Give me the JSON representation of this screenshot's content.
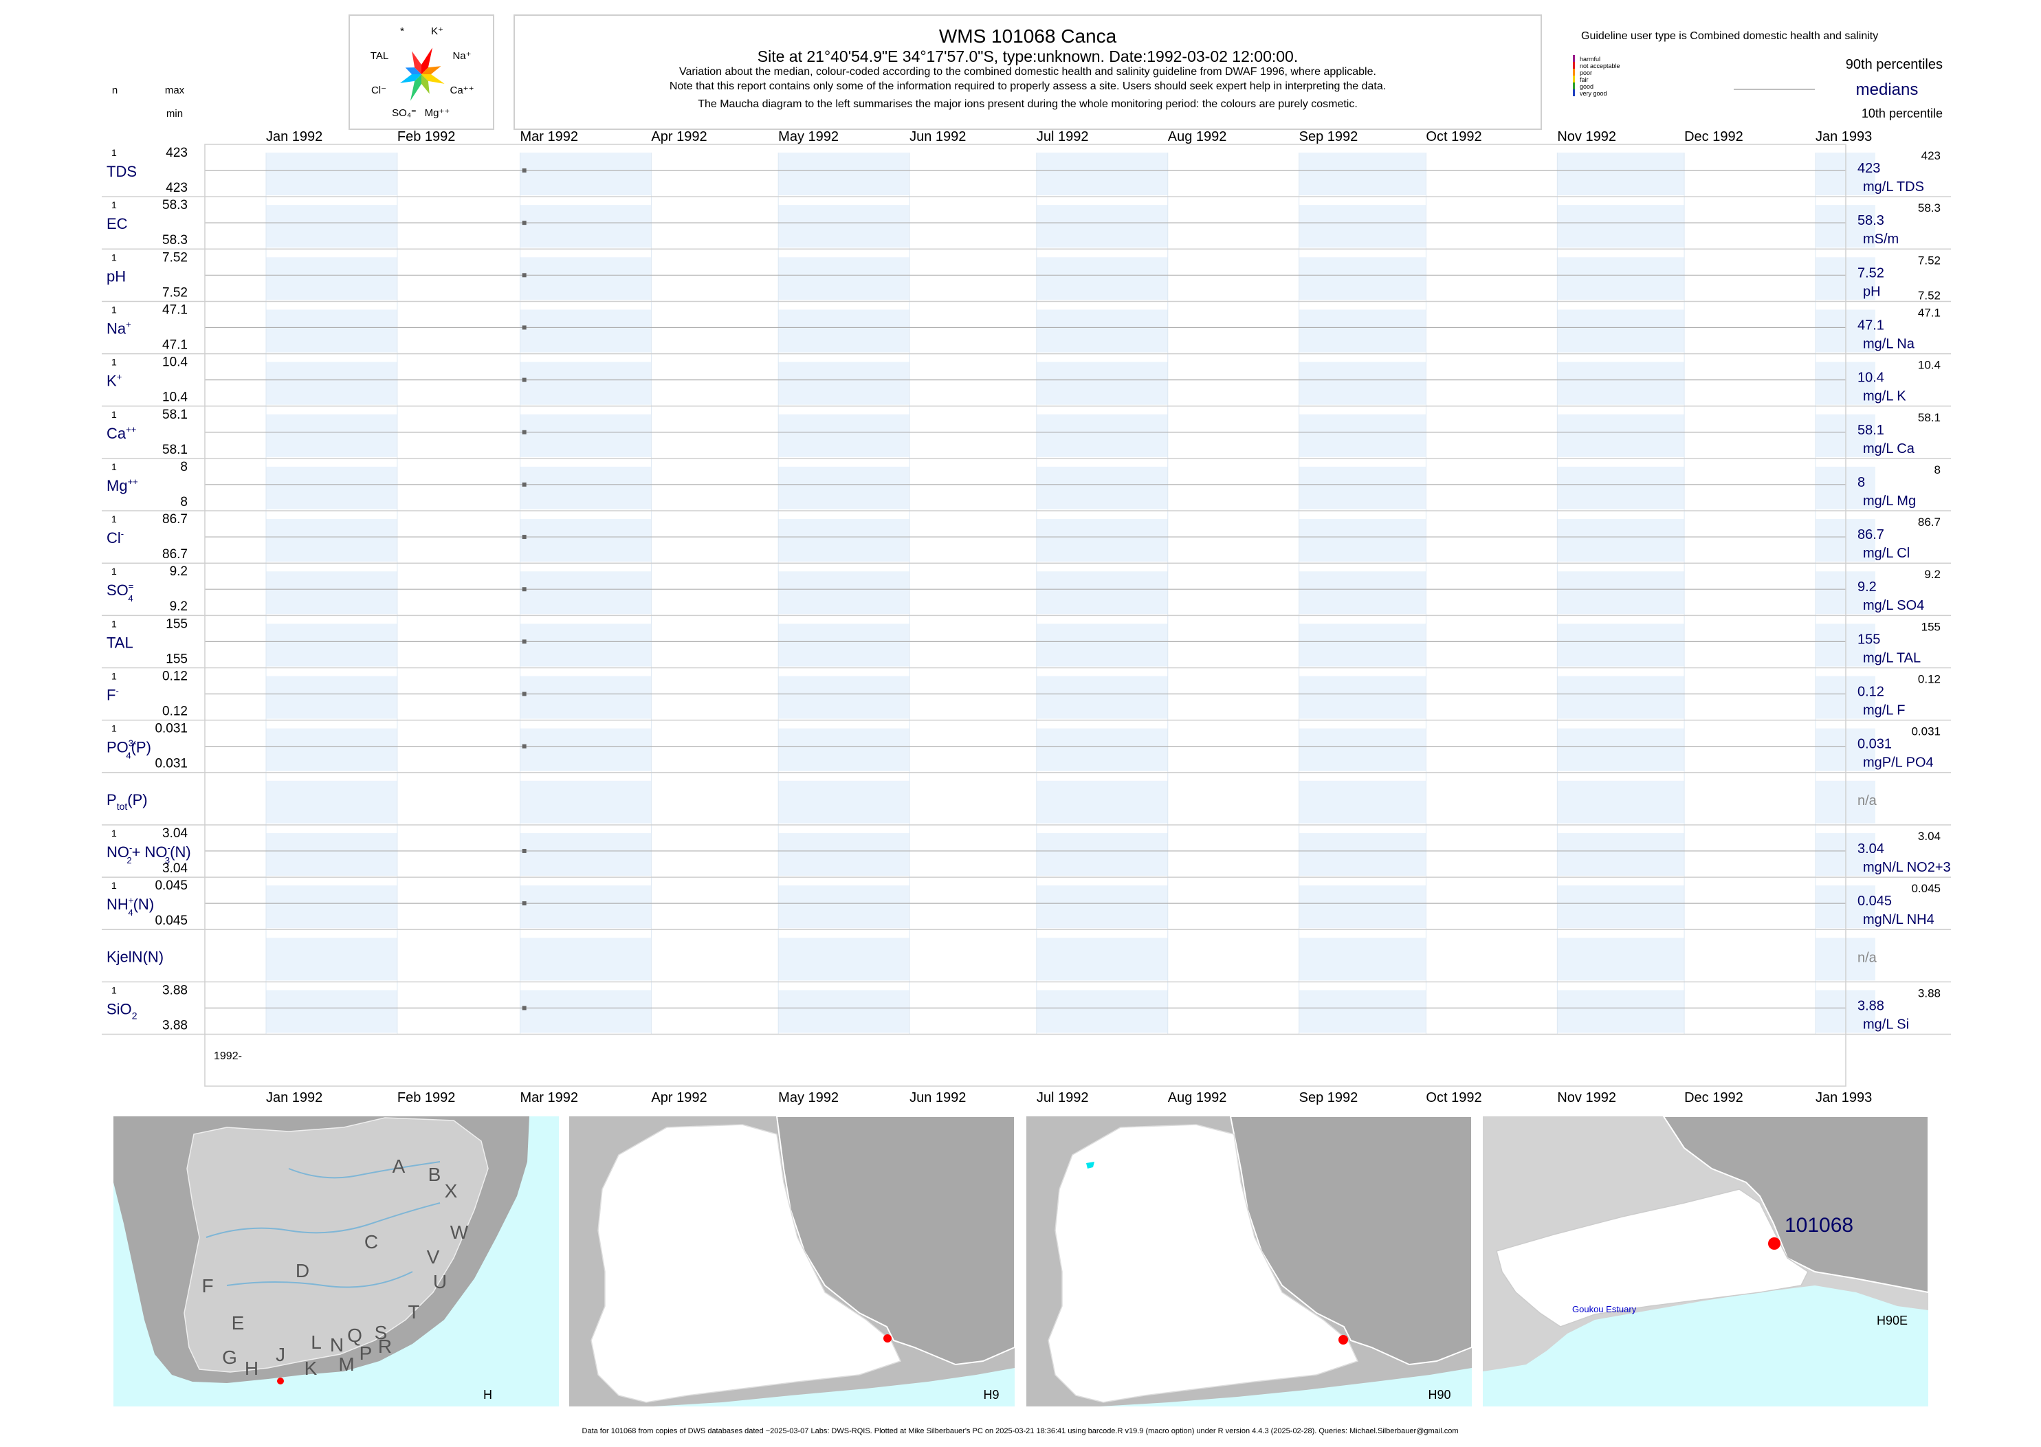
{
  "header": {
    "title": "WMS 101068  Canca",
    "subtitle": "Site at 21°40'54.9\"E 34°17'57.0\"S, type:unknown. Date:1992-03-02 12:00:00.",
    "note_lines": [
      "Variation about the median,  colour-coded according to the combined domestic health and salinity guideline from DWAF 1996, where applicable.",
      "Note that this report contains only some of the information required to properly assess a site. Users should seek expert help in interpreting the data.",
      "The Maucha diagram to the left summarises the major ions present during the whole monitoring period: the colours are purely cosmetic."
    ]
  },
  "maucha": {
    "labels": [
      "*",
      "K⁺",
      "TAL",
      "Na⁺",
      "Cl⁻",
      "Ca⁺⁺",
      "SO₄⁼",
      "Mg⁺⁺"
    ],
    "colors": [
      "#ff0000",
      "#ff8c00",
      "#ffd700",
      "#9acd32",
      "#2ecc71",
      "#00bfff",
      "#1e90ff",
      "#ff3030"
    ]
  },
  "legend": {
    "guideline_title": "Guideline user type is Combined domestic health and salinity",
    "categories": [
      {
        "label": "harmful",
        "color": "#9b1b8a"
      },
      {
        "label": "not acceptable",
        "color": "#e31a1c"
      },
      {
        "label": "poor",
        "color": "#ff8c00"
      },
      {
        "label": "fair",
        "color": "#f2d600"
      },
      {
        "label": "good",
        "color": "#2ca02c"
      },
      {
        "label": "very good",
        "color": "#1f3fbf"
      }
    ],
    "p90_label": "90th percentiles",
    "median_label": "medians",
    "p10_label": "10th percentile"
  },
  "left_header": {
    "n": "n",
    "max": "max",
    "min": "min"
  },
  "months": [
    "Jan 1992",
    "Feb 1992",
    "Mar 1992",
    "Apr 1992",
    "May 1992",
    "Jun 1992",
    "Jul 1992",
    "Aug 1992",
    "Sep 1992",
    "Oct 1992",
    "Nov 1992",
    "Dec 1992",
    "Jan 1993"
  ],
  "year_label": "1992-",
  "chart_data": {
    "type": "scatter",
    "x_range": [
      "1992-01-01",
      "1993-01-01"
    ],
    "sample_date": "1992-03-02",
    "rows": [
      {
        "name": "TDS",
        "n": "1",
        "max": "423",
        "min": "423",
        "median": "423",
        "p90": "423",
        "p10": "",
        "unit": "mg/L TDS",
        "value": 423
      },
      {
        "name": "EC",
        "n": "1",
        "max": "58.3",
        "min": "58.3",
        "median": "58.3",
        "p90": "58.3",
        "p10": "",
        "unit": "mS/m",
        "value": 58.3
      },
      {
        "name": "pH",
        "n": "1",
        "max": "7.52",
        "min": "7.52",
        "median": "7.52",
        "p90": "7.52",
        "p10": "7.52",
        "unit": "pH",
        "value": 7.52
      },
      {
        "name": "Na",
        "sup": "+",
        "n": "1",
        "max": "47.1",
        "min": "47.1",
        "median": "47.1",
        "p90": "47.1",
        "p10": "",
        "unit": "mg/L Na",
        "value": 47.1
      },
      {
        "name": "K",
        "sup": "+",
        "n": "1",
        "max": "10.4",
        "min": "10.4",
        "median": "10.4",
        "p90": "10.4",
        "p10": "",
        "unit": "mg/L K",
        "value": 10.4
      },
      {
        "name": "Ca",
        "sup": "++",
        "n": "1",
        "max": "58.1",
        "min": "58.1",
        "median": "58.1",
        "p90": "58.1",
        "p10": "",
        "unit": "mg/L Ca",
        "value": 58.1
      },
      {
        "name": "Mg",
        "sup": "++",
        "n": "1",
        "max": "8",
        "min": "8",
        "median": "8",
        "p90": "8",
        "p10": "",
        "unit": "mg/L Mg",
        "value": 8
      },
      {
        "name": "Cl",
        "sup": "-",
        "n": "1",
        "max": "86.7",
        "min": "86.7",
        "median": "86.7",
        "p90": "86.7",
        "p10": "",
        "unit": "mg/L Cl",
        "value": 86.7
      },
      {
        "name": "SO",
        "sub": "4",
        "sup": "=",
        "n": "1",
        "max": "9.2",
        "min": "9.2",
        "median": "9.2",
        "p90": "9.2",
        "p10": "",
        "unit": "mg/L SO4",
        "value": 9.2
      },
      {
        "name": "TAL",
        "n": "1",
        "max": "155",
        "min": "155",
        "median": "155",
        "p90": "155",
        "p10": "",
        "unit": "mg/L TAL",
        "value": 155
      },
      {
        "name": "F",
        "sup": "-",
        "n": "1",
        "max": "0.12",
        "min": "0.12",
        "median": "0.12",
        "p90": "0.12",
        "p10": "",
        "unit": "mg/L F",
        "value": 0.12
      },
      {
        "name": "PO",
        "sub": "4",
        "sup": "3-",
        "suffix": "(P)",
        "n": "1",
        "max": "0.031",
        "min": "0.031",
        "median": "0.031",
        "p90": "0.031",
        "p10": "",
        "unit": "mgP/L PO4",
        "value": 0.031
      },
      {
        "name": "P",
        "sub": "tot",
        "suffix": "(P)",
        "n": "",
        "max": "",
        "min": "",
        "median": "n/a",
        "p90": "",
        "p10": "",
        "unit": "",
        "value": null
      },
      {
        "name": "NO",
        "sub": "2",
        "sup": "-",
        "suffix": "+ NO",
        "sub2": "3",
        "sup2": "-",
        "suffix2": "(N)",
        "n": "1",
        "max": "3.04",
        "min": "3.04",
        "median": "3.04",
        "p90": "3.04",
        "p10": "",
        "unit": "mgN/L NO2+3",
        "value": 3.04
      },
      {
        "name": "NH",
        "sub": "4",
        "sup": "+",
        "suffix": "(N)",
        "n": "1",
        "max": "0.045",
        "min": "0.045",
        "median": "0.045",
        "p90": "0.045",
        "p10": "",
        "unit": "mgN/L NH4",
        "value": 0.045
      },
      {
        "name": "KjelN(N)",
        "n": "",
        "max": "",
        "min": "",
        "median": "n/a",
        "p90": "",
        "p10": "",
        "unit": "",
        "value": null
      },
      {
        "name": "SiO",
        "sub": "2",
        "n": "1",
        "max": "3.88",
        "min": "3.88",
        "median": "3.88",
        "p90": "3.88",
        "p10": "",
        "unit": "mg/L Si",
        "value": 3.88
      }
    ]
  },
  "maps": [
    {
      "corner": "H",
      "letters": [
        "A",
        "B",
        "X",
        "W",
        "C",
        "V",
        "U",
        "D",
        "T",
        "F",
        "E",
        "S",
        "R",
        "Q",
        "P",
        "N",
        "M",
        "L",
        "K",
        "J",
        "H",
        "G"
      ]
    },
    {
      "corner": "H9"
    },
    {
      "corner": "H90"
    },
    {
      "corner": "H90E",
      "site": "101068",
      "estuary": "Goukou Estuary"
    }
  ],
  "colors": {
    "axis_text": "#000066",
    "band": "#eaf3fc",
    "sea": "#d4fbfd",
    "land_dark": "#a9a9a9",
    "land_mid": "#c8c8c8",
    "catchment": "#ffffff",
    "site": "#ff0000"
  },
  "footer": "Data for 101068 from copies of DWS databases dated ~2025-03-07 Labs: DWS-RQIS. Plotted at Mike Silberbauer's PC on 2025-03-21 18:36:41 using barcode.R v19.9 (macro option) under R version 4.4.3 (2025-02-28). Queries: Michael.Silberbauer@gmail.com"
}
